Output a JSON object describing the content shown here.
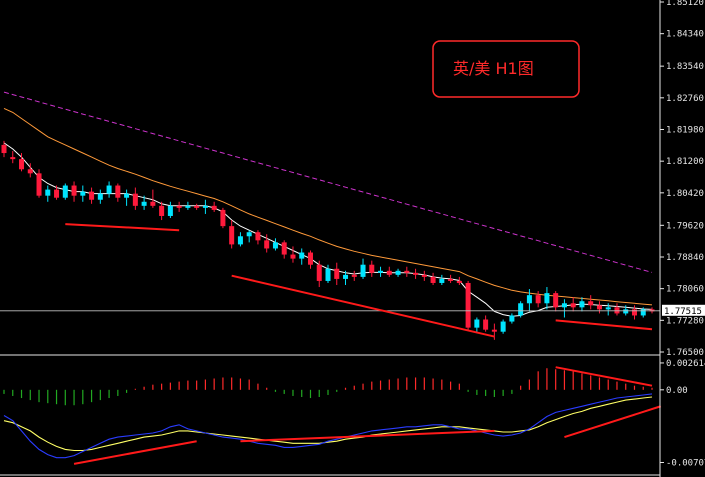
{
  "title": "英/美  H1图",
  "chart_data": [
    {
      "type": "candlestick",
      "panel": "price",
      "ylim": [
        1.765,
        1.8512
      ],
      "y_ticks": [
        "1.85120",
        "1.84340",
        "1.83540",
        "1.82760",
        "1.81980",
        "1.81200",
        "1.80420",
        "1.79620",
        "1.78840",
        "1.78060",
        "1.77280",
        "1.76500"
      ],
      "y_tick_values": [
        1.8512,
        1.8434,
        1.8354,
        1.8276,
        1.8198,
        1.812,
        1.8042,
        1.7962,
        1.7884,
        1.7806,
        1.7728,
        1.765
      ],
      "current_price_label": "1.77515",
      "current_price": 1.77515,
      "candles": [
        [
          1.816,
          1.817,
          1.813,
          1.814
        ],
        [
          1.813,
          1.8145,
          1.8115,
          1.8125
        ],
        [
          1.8125,
          1.814,
          1.8095,
          1.81
        ],
        [
          1.81,
          1.8115,
          1.808,
          1.809
        ],
        [
          1.809,
          1.81,
          1.803,
          1.8035
        ],
        [
          1.8035,
          1.806,
          1.802,
          1.805
        ],
        [
          1.805,
          1.806,
          1.8025,
          1.803
        ],
        [
          1.803,
          1.8065,
          1.8025,
          1.806
        ],
        [
          1.806,
          1.807,
          1.802,
          1.8035
        ],
        [
          1.8035,
          1.806,
          1.802,
          1.8045
        ],
        [
          1.8045,
          1.8055,
          1.8015,
          1.8025
        ],
        [
          1.8025,
          1.805,
          1.8015,
          1.804
        ],
        [
          1.804,
          1.807,
          1.803,
          1.806
        ],
        [
          1.806,
          1.8065,
          1.802,
          1.803
        ],
        [
          1.803,
          1.805,
          1.801,
          1.804
        ],
        [
          1.804,
          1.8055,
          1.8,
          1.801
        ],
        [
          1.801,
          1.8035,
          1.8,
          1.802
        ],
        [
          1.802,
          1.805,
          1.8005,
          1.801
        ],
        [
          1.801,
          1.802,
          1.7975,
          1.7985
        ],
        [
          1.7985,
          1.802,
          1.798,
          1.801
        ],
        [
          1.801,
          1.802,
          1.7995,
          1.8005
        ],
        [
          1.8005,
          1.802,
          1.8,
          1.801
        ],
        [
          1.801,
          1.8015,
          1.8,
          1.8005
        ],
        [
          1.8005,
          1.8025,
          1.799,
          1.801
        ],
        [
          1.801,
          1.802,
          1.7995,
          1.8
        ],
        [
          1.8,
          1.8005,
          1.7955,
          1.796
        ],
        [
          1.796,
          1.7975,
          1.7905,
          1.7915
        ],
        [
          1.7915,
          1.7945,
          1.791,
          1.7935
        ],
        [
          1.7935,
          1.795,
          1.792,
          1.7945
        ],
        [
          1.7945,
          1.795,
          1.7915,
          1.7925
        ],
        [
          1.7925,
          1.794,
          1.7895,
          1.7905
        ],
        [
          1.7905,
          1.793,
          1.79,
          1.792
        ],
        [
          1.792,
          1.7925,
          1.788,
          1.789
        ],
        [
          1.789,
          1.791,
          1.787,
          1.788
        ],
        [
          1.788,
          1.7905,
          1.7865,
          1.7895
        ],
        [
          1.7895,
          1.79,
          1.7855,
          1.7865
        ],
        [
          1.7865,
          1.7875,
          1.781,
          1.7825
        ],
        [
          1.7825,
          1.7865,
          1.782,
          1.7855
        ],
        [
          1.7855,
          1.787,
          1.7815,
          1.783
        ],
        [
          1.783,
          1.785,
          1.7815,
          1.784
        ],
        [
          1.784,
          1.785,
          1.7825,
          1.7835
        ],
        [
          1.7835,
          1.788,
          1.783,
          1.7865
        ],
        [
          1.7865,
          1.7875,
          1.7835,
          1.7845
        ],
        [
          1.7845,
          1.786,
          1.7835,
          1.785
        ],
        [
          1.785,
          1.786,
          1.7835,
          1.784
        ],
        [
          1.784,
          1.7855,
          1.7835,
          1.785
        ],
        [
          1.785,
          1.786,
          1.7835,
          1.7845
        ],
        [
          1.7845,
          1.7855,
          1.783,
          1.784
        ],
        [
          1.784,
          1.785,
          1.7825,
          1.7835
        ],
        [
          1.7835,
          1.7845,
          1.7815,
          1.782
        ],
        [
          1.782,
          1.784,
          1.7815,
          1.783
        ],
        [
          1.783,
          1.784,
          1.782,
          1.7825
        ],
        [
          1.7825,
          1.7835,
          1.7815,
          1.782
        ],
        [
          1.782,
          1.7825,
          1.7705,
          1.771
        ],
        [
          1.771,
          1.7735,
          1.77,
          1.773
        ],
        [
          1.773,
          1.774,
          1.77,
          1.7705
        ],
        [
          1.7705,
          1.772,
          1.768,
          1.77
        ],
        [
          1.77,
          1.773,
          1.7695,
          1.7725
        ],
        [
          1.7725,
          1.7745,
          1.772,
          1.774
        ],
        [
          1.774,
          1.7775,
          1.7735,
          1.777
        ],
        [
          1.777,
          1.7805,
          1.775,
          1.779
        ],
        [
          1.779,
          1.78,
          1.776,
          1.777
        ],
        [
          1.777,
          1.781,
          1.7755,
          1.7795
        ],
        [
          1.7795,
          1.78,
          1.775,
          1.776
        ],
        [
          1.776,
          1.778,
          1.7735,
          1.777
        ],
        [
          1.777,
          1.7785,
          1.775,
          1.776
        ],
        [
          1.776,
          1.7785,
          1.775,
          1.7775
        ],
        [
          1.7775,
          1.779,
          1.7755,
          1.7765
        ],
        [
          1.7765,
          1.7775,
          1.7745,
          1.7755
        ],
        [
          1.7755,
          1.777,
          1.774,
          1.776
        ],
        [
          1.776,
          1.777,
          1.774,
          1.7745
        ],
        [
          1.7745,
          1.7765,
          1.774,
          1.7755
        ],
        [
          1.7755,
          1.7765,
          1.773,
          1.774
        ],
        [
          1.774,
          1.776,
          1.7735,
          1.7755
        ],
        [
          1.7755,
          1.776,
          1.7745,
          1.775
        ]
      ],
      "candle_up_color": "#00e5ff",
      "candle_down_color": "#ff1a3c",
      "moving_averages": [
        {
          "color": "#ffffff",
          "values": [
            1.8165,
            1.815,
            1.813,
            1.8105,
            1.808,
            1.8065,
            1.8055,
            1.805,
            1.8045,
            1.8045,
            1.804,
            1.804,
            1.804,
            1.804,
            1.804,
            1.8035,
            1.803,
            1.8025,
            1.8015,
            1.801,
            1.801,
            1.801,
            1.801,
            1.801,
            1.8005,
            1.7995,
            1.7975,
            1.796,
            1.795,
            1.794,
            1.793,
            1.792,
            1.791,
            1.79,
            1.789,
            1.788,
            1.7865,
            1.7855,
            1.785,
            1.7845,
            1.7842,
            1.7845,
            1.7846,
            1.7846,
            1.7845,
            1.7845,
            1.7845,
            1.7843,
            1.784,
            1.7835,
            1.7832,
            1.783,
            1.7826,
            1.78,
            1.7785,
            1.777,
            1.775,
            1.7742,
            1.7738,
            1.774,
            1.7748,
            1.7752,
            1.776,
            1.7762,
            1.7764,
            1.7766,
            1.7768,
            1.7767,
            1.7765,
            1.7764,
            1.7762,
            1.776,
            1.7758,
            1.7756,
            1.7755
          ]
        },
        {
          "color": "#ff9a3a",
          "values": [
            1.825,
            1.824,
            1.8225,
            1.821,
            1.8195,
            1.818,
            1.817,
            1.816,
            1.815,
            1.814,
            1.813,
            1.812,
            1.811,
            1.8102,
            1.8095,
            1.8088,
            1.808,
            1.8072,
            1.8065,
            1.8058,
            1.8052,
            1.8046,
            1.804,
            1.8034,
            1.8028,
            1.802,
            1.801,
            1.8,
            1.799,
            1.7982,
            1.7974,
            1.7966,
            1.7958,
            1.795,
            1.7942,
            1.7935,
            1.7926,
            1.7918,
            1.791,
            1.7904,
            1.7898,
            1.7893,
            1.7888,
            1.7884,
            1.788,
            1.7876,
            1.7872,
            1.7868,
            1.7864,
            1.786,
            1.7856,
            1.7852,
            1.7848,
            1.7838,
            1.783,
            1.7822,
            1.7814,
            1.7808,
            1.7802,
            1.7798,
            1.7795,
            1.7792,
            1.779,
            1.7788,
            1.7786,
            1.7784,
            1.7782,
            1.778,
            1.7778,
            1.7776,
            1.7774,
            1.7772,
            1.777,
            1.7768,
            1.7766
          ]
        },
        {
          "color": "#cc33cc",
          "dashed": true,
          "values": [
            1.829,
            1.8284,
            1.8278,
            1.8272,
            1.8266,
            1.826,
            1.8254,
            1.8248,
            1.8242,
            1.8236,
            1.823,
            1.8224,
            1.8218,
            1.8212,
            1.8206,
            1.82,
            1.8194,
            1.8188,
            1.8182,
            1.8176,
            1.817,
            1.8164,
            1.8158,
            1.8152,
            1.8146,
            1.814,
            1.8134,
            1.8128,
            1.8122,
            1.8116,
            1.811,
            1.8104,
            1.8098,
            1.8092,
            1.8086,
            1.808,
            1.8074,
            1.8068,
            1.8062,
            1.8056,
            1.805,
            1.8044,
            1.8038,
            1.8032,
            1.8026,
            1.802,
            1.8014,
            1.8008,
            1.8002,
            1.7996,
            1.799,
            1.7984,
            1.7978,
            1.7972,
            1.7966,
            1.796,
            1.7954,
            1.7948,
            1.7942,
            1.7936,
            1.793,
            1.7924,
            1.7918,
            1.7912,
            1.7906,
            1.79,
            1.7894,
            1.7888,
            1.7882,
            1.7876,
            1.787,
            1.7864,
            1.7858,
            1.7852,
            1.7846
          ]
        }
      ]
    },
    {
      "type": "macd",
      "panel": "indicator",
      "ylim": [
        -0.0078,
        0.0029
      ],
      "y_ticks": [
        "0.002614",
        "0.00",
        "-0.00707"
      ],
      "y_tick_values": [
        0.002614,
        0.0,
        -0.00707
      ],
      "histogram": [
        -0.0004,
        -0.0006,
        -0.0008,
        -0.001,
        -0.0012,
        -0.0013,
        -0.0014,
        -0.0015,
        -0.0015,
        -0.0014,
        -0.0012,
        -0.001,
        -0.0008,
        -0.0006,
        -0.0003,
        0.0001,
        0.0003,
        0.0005,
        0.0006,
        0.0007,
        0.0008,
        0.0009,
        0.0009,
        0.001,
        0.0011,
        0.0012,
        0.0012,
        0.0011,
        0.001,
        0.0006,
        0.0002,
        -0.0002,
        -0.0004,
        -0.0006,
        -0.0007,
        -0.0008,
        -0.0007,
        -0.0005,
        -0.0002,
        0.0002,
        0.0004,
        0.0006,
        0.0008,
        0.0009,
        0.001,
        0.0011,
        0.0012,
        0.0012,
        0.0012,
        0.0011,
        0.001,
        0.0008,
        0.0006,
        -0.0002,
        -0.0005,
        -0.0006,
        -0.0007,
        -0.0006,
        -0.0004,
        0.0004,
        0.001,
        0.0018,
        0.0021,
        0.002,
        0.0019,
        0.0018,
        0.0016,
        0.0014,
        0.0012,
        0.001,
        0.0008,
        0.0006,
        0.0004,
        0.0003,
        0.0002
      ],
      "histogram_up_color": "#ff2a2a",
      "histogram_down_color": "#22aa22",
      "main_line": {
        "color": "#2a3cff",
        "values": [
          -0.0025,
          -0.003,
          -0.004,
          -0.005,
          -0.0058,
          -0.0063,
          -0.0066,
          -0.0066,
          -0.0064,
          -0.006,
          -0.0056,
          -0.0052,
          -0.0048,
          -0.0046,
          -0.0045,
          -0.0044,
          -0.0043,
          -0.0042,
          -0.004,
          -0.0036,
          -0.0034,
          -0.0038,
          -0.004,
          -0.0042,
          -0.0044,
          -0.0046,
          -0.0047,
          -0.0048,
          -0.005,
          -0.0052,
          -0.0053,
          -0.0054,
          -0.0056,
          -0.0056,
          -0.0055,
          -0.0054,
          -0.0053,
          -0.005,
          -0.0048,
          -0.0046,
          -0.0044,
          -0.0042,
          -0.004,
          -0.0039,
          -0.0038,
          -0.0037,
          -0.0036,
          -0.0036,
          -0.0035,
          -0.0034,
          -0.0034,
          -0.0036,
          -0.0038,
          -0.0038,
          -0.004,
          -0.0042,
          -0.0044,
          -0.0045,
          -0.0044,
          -0.0042,
          -0.0038,
          -0.0032,
          -0.0026,
          -0.0022,
          -0.002,
          -0.0018,
          -0.0016,
          -0.0014,
          -0.0012,
          -0.001,
          -0.0008,
          -0.0007,
          -0.0006,
          -0.0005,
          -0.0004
        ]
      },
      "signal_line": {
        "color": "#ffff66",
        "values": [
          -0.003,
          -0.0032,
          -0.0036,
          -0.004,
          -0.0046,
          -0.0051,
          -0.0055,
          -0.0058,
          -0.0059,
          -0.0059,
          -0.0058,
          -0.0056,
          -0.0054,
          -0.0052,
          -0.005,
          -0.0048,
          -0.0046,
          -0.0045,
          -0.0044,
          -0.0042,
          -0.004,
          -0.004,
          -0.0041,
          -0.0042,
          -0.0043,
          -0.0044,
          -0.0045,
          -0.0046,
          -0.0047,
          -0.0048,
          -0.0049,
          -0.005,
          -0.0051,
          -0.0052,
          -0.0052,
          -0.0052,
          -0.0052,
          -0.0051,
          -0.005,
          -0.0048,
          -0.0047,
          -0.0046,
          -0.0044,
          -0.0043,
          -0.0042,
          -0.0041,
          -0.004,
          -0.0039,
          -0.0038,
          -0.0037,
          -0.0036,
          -0.0036,
          -0.0036,
          -0.0037,
          -0.0038,
          -0.0039,
          -0.004,
          -0.0041,
          -0.0041,
          -0.004,
          -0.0039,
          -0.0036,
          -0.0032,
          -0.0029,
          -0.0026,
          -0.0023,
          -0.0021,
          -0.0018,
          -0.0016,
          -0.0014,
          -0.0012,
          -0.001,
          -0.0009,
          -0.0008,
          -0.0007
        ]
      }
    }
  ],
  "trendlines": {
    "color": "#ff1a1a",
    "price": [
      {
        "from": [
          7,
          1.7965
        ],
        "to": [
          20,
          1.795
        ]
      },
      {
        "from": [
          26,
          1.7838
        ],
        "to": [
          56,
          1.7688
        ]
      },
      {
        "from": [
          63,
          1.7728
        ],
        "to": [
          74,
          1.7706
        ]
      }
    ],
    "macd_histogram": [
      {
        "from": [
          63,
          0.0022
        ],
        "to": [
          74,
          0.0004
        ]
      }
    ],
    "macd_lines": [
      {
        "from": [
          8,
          -0.0072
        ],
        "to": [
          22,
          -0.005
        ]
      },
      {
        "from": [
          27,
          -0.005
        ],
        "to": [
          56,
          -0.004
        ]
      },
      {
        "from": [
          64,
          -0.0046
        ],
        "to": [
          75,
          -0.0016
        ]
      }
    ]
  },
  "colors": {
    "background": "#000000",
    "axis": "#e6e6e6",
    "current_line": "#c0c0c0",
    "title_border": "#ff2a2a"
  }
}
